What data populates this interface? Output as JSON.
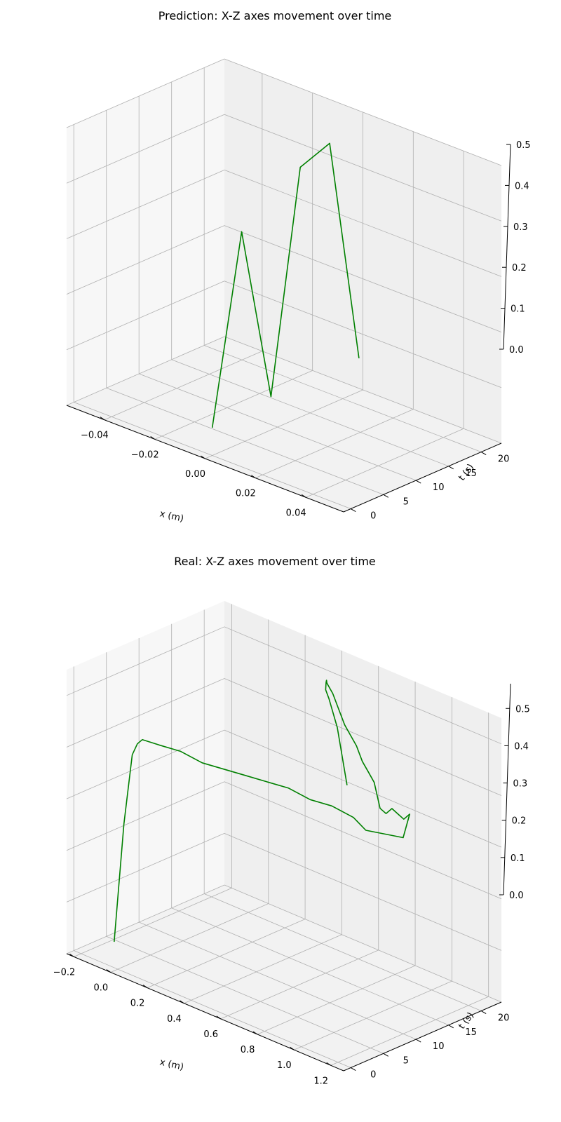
{
  "chart_data": [
    {
      "type": "line",
      "projection": "3d",
      "title": "Prediction: X-Z axes movement over time",
      "xlabel": "x (m)",
      "ylabel": "t (s)",
      "zlabel": "",
      "xlim": [
        -0.055,
        0.055
      ],
      "ylim": [
        -1.1,
        23.1
      ],
      "zlim": [
        0,
        0.5
      ],
      "x_ticks": [
        "-0.04",
        "-0.02",
        "0.00",
        "0.02",
        "0.04"
      ],
      "y_ticks": [
        "0",
        "5",
        "10",
        "15",
        "20"
      ],
      "z_ticks": [
        "0.0",
        "0.1",
        "0.2",
        "0.3",
        "0.4",
        "0.5"
      ],
      "grid": true,
      "line_color": "#008000",
      "series": [
        {
          "x": [
            0,
            0,
            0,
            0,
            0,
            0
          ],
          "t": [
            0,
            4.5,
            9,
            13.5,
            18,
            22.5
          ],
          "z": [
            0.05,
            0.38,
            0.06,
            0.45,
            0.47,
            0.06
          ]
        }
      ]
    },
    {
      "type": "line",
      "projection": "3d",
      "title": "Real: X-Z axes movement over time",
      "xlabel": "x (m)",
      "ylabel": "t (s)",
      "zlabel": "",
      "xlim": [
        -0.24,
        1.27
      ],
      "ylim": [
        -1.1,
        23.1
      ],
      "zlim": [
        0,
        0.55
      ],
      "x_ticks": [
        "-0.2",
        "0.0",
        "0.2",
        "0.4",
        "0.6",
        "0.8",
        "1.0",
        "1.2"
      ],
      "y_ticks": [
        "0",
        "5",
        "10",
        "15",
        "20"
      ],
      "z_ticks": [
        "0.0",
        "0.1",
        "0.2",
        "0.3",
        "0.4",
        "0.5"
      ],
      "grid": true,
      "line_color": "#008000",
      "series": [
        {
          "x": [
            -0.02,
            -0.02,
            -0.01,
            0.0,
            0.02,
            0.1,
            0.2,
            0.3,
            0.4,
            0.5,
            0.6,
            0.7,
            0.8,
            0.9,
            1.0,
            1.05,
            1.1,
            1.15,
            1.2,
            1.2,
            1.15,
            1.1,
            1.05,
            1.0,
            0.95,
            0.9,
            0.85,
            0.8,
            0.75,
            0.7,
            0.65,
            0.6,
            0.55,
            0.5,
            0.48,
            0.46,
            0.44,
            0.44,
            0.45,
            0.45
          ],
          "t": [
            0,
            1.5,
            2.5,
            3,
            3.2,
            3.5,
            4,
            4.5,
            5,
            5.5,
            6,
            6.5,
            7,
            7.5,
            8,
            8.5,
            9,
            9.5,
            10,
            11,
            11.5,
            12,
            12.5,
            13,
            13.5,
            14,
            14.5,
            15,
            15.5,
            16,
            16.5,
            17,
            17.5,
            18,
            18.5,
            19,
            19.5,
            20,
            21,
            22.5
          ],
          "z": [
            0.05,
            0.27,
            0.4,
            0.42,
            0.43,
            0.43,
            0.43,
            0.42,
            0.42,
            0.42,
            0.42,
            0.42,
            0.41,
            0.41,
            0.4,
            0.38,
            0.38,
            0.38,
            0.38,
            0.42,
            0.4,
            0.4,
            0.4,
            0.38,
            0.38,
            0.42,
            0.43,
            0.44,
            0.46,
            0.47,
            0.48,
            0.5,
            0.52,
            0.53,
            0.53,
            0.52,
            0.5,
            0.48,
            0.42,
            0.3
          ]
        }
      ]
    }
  ]
}
